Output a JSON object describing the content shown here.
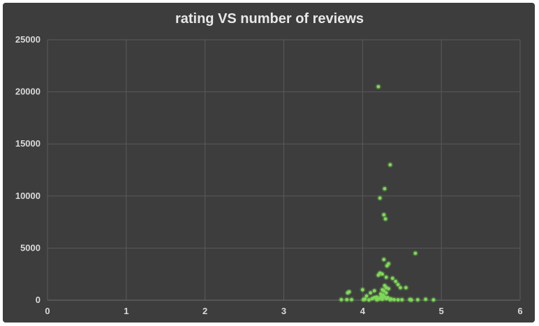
{
  "chart_data": {
    "type": "scatter",
    "title": "rating VS number of reviews",
    "xlabel": "",
    "ylabel": "",
    "xlim": [
      0,
      6
    ],
    "ylim": [
      0,
      25000
    ],
    "x_ticks": [
      "0",
      "1",
      "2",
      "3",
      "4",
      "5",
      "6"
    ],
    "y_ticks": [
      "0",
      "5000",
      "10000",
      "15000",
      "20000",
      "25000"
    ],
    "grid": true,
    "legend": "none",
    "colors": {
      "background": "#3d3d3d",
      "grid": "#5a5a5a",
      "point": "#7ed957",
      "text": "#d9d9d9"
    },
    "series": [
      {
        "points": [
          [
            4.2,
            20500
          ],
          [
            4.35,
            13000
          ],
          [
            4.28,
            10700
          ],
          [
            4.22,
            9800
          ],
          [
            4.27,
            8200
          ],
          [
            4.29,
            7800
          ],
          [
            4.67,
            4500
          ],
          [
            4.27,
            3900
          ],
          [
            4.33,
            3500
          ],
          [
            4.31,
            3300
          ],
          [
            4.22,
            2600
          ],
          [
            4.25,
            2500
          ],
          [
            4.2,
            2400
          ],
          [
            4.3,
            2200
          ],
          [
            4.38,
            2100
          ],
          [
            4.42,
            1800
          ],
          [
            4.45,
            1500
          ],
          [
            4.48,
            1200
          ],
          [
            4.55,
            1200
          ],
          [
            4.28,
            1400
          ],
          [
            4.3,
            1200
          ],
          [
            4.33,
            1100
          ],
          [
            4.25,
            1000
          ],
          [
            4.15,
            900
          ],
          [
            4.0,
            1000
          ],
          [
            4.1,
            700
          ],
          [
            3.83,
            800
          ],
          [
            3.81,
            700
          ],
          [
            4.05,
            400
          ],
          [
            4.18,
            300
          ],
          [
            4.22,
            200
          ],
          [
            4.26,
            500
          ],
          [
            4.28,
            300
          ],
          [
            4.3,
            700
          ],
          [
            4.27,
            900
          ],
          [
            4.23,
            600
          ],
          [
            4.2,
            100
          ],
          [
            4.12,
            150
          ],
          [
            4.03,
            100
          ],
          [
            4.01,
            50
          ],
          [
            3.73,
            50
          ],
          [
            3.8,
            50
          ],
          [
            3.86,
            50
          ],
          [
            4.35,
            50
          ],
          [
            4.4,
            50
          ],
          [
            4.45,
            30
          ],
          [
            4.5,
            40
          ],
          [
            4.6,
            60
          ],
          [
            4.62,
            20
          ],
          [
            4.7,
            40
          ],
          [
            4.8,
            80
          ],
          [
            4.9,
            30
          ],
          [
            4.25,
            80
          ],
          [
            4.18,
            40
          ],
          [
            4.08,
            20
          ],
          [
            4.3,
            150
          ],
          [
            4.32,
            250
          ],
          [
            4.15,
            250
          ],
          [
            4.24,
            350
          ],
          [
            4.36,
            100
          ]
        ]
      }
    ]
  }
}
